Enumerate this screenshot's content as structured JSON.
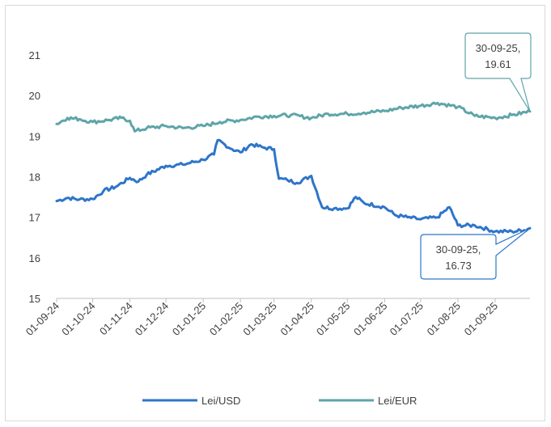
{
  "chart_data": {
    "type": "line",
    "title": "",
    "xlabel": "",
    "ylabel": "",
    "ylim": [
      15,
      21.5
    ],
    "yticks": [
      "15",
      "16",
      "17",
      "18",
      "19",
      "20",
      "21"
    ],
    "xticks": [
      "01-09-24",
      "01-10-24",
      "01-11-24",
      "01-12-24",
      "01-01-25",
      "01-02-25",
      "01-03-25",
      "01-04-25",
      "01-05-25",
      "01-06-25",
      "01-07-25",
      "01-08-25",
      "01-09-25"
    ],
    "x_range": [
      "01-09-24",
      "30-09-25"
    ],
    "grid": false,
    "legend_position": "bottom",
    "series": [
      {
        "name": "Lei/USD",
        "color": "#2e75c9",
        "points": [
          [
            "01-09-24",
            17.4
          ],
          [
            "10-09-24",
            17.48
          ],
          [
            "20-09-24",
            17.44
          ],
          [
            "01-10-24",
            17.45
          ],
          [
            "10-10-24",
            17.65
          ],
          [
            "20-10-24",
            17.75
          ],
          [
            "01-11-24",
            17.97
          ],
          [
            "08-11-24",
            17.88
          ],
          [
            "15-11-24",
            18.05
          ],
          [
            "01-12-24",
            18.27
          ],
          [
            "15-12-24",
            18.3
          ],
          [
            "01-01-25",
            18.42
          ],
          [
            "10-01-25",
            18.55
          ],
          [
            "13-01-25",
            18.9
          ],
          [
            "25-01-25",
            18.68
          ],
          [
            "01-02-25",
            18.6
          ],
          [
            "10-02-25",
            18.8
          ],
          [
            "20-02-25",
            18.72
          ],
          [
            "01-03-25",
            18.68
          ],
          [
            "05-03-25",
            17.95
          ],
          [
            "12-03-25",
            17.92
          ],
          [
            "20-03-25",
            17.85
          ],
          [
            "01-04-25",
            18.02
          ],
          [
            "10-04-25",
            17.25
          ],
          [
            "20-04-25",
            17.22
          ],
          [
            "01-05-25",
            17.22
          ],
          [
            "08-05-25",
            17.5
          ],
          [
            "15-05-25",
            17.35
          ],
          [
            "01-06-25",
            17.25
          ],
          [
            "10-06-25",
            17.05
          ],
          [
            "20-06-25",
            17.0
          ],
          [
            "01-07-25",
            16.95
          ],
          [
            "15-07-25",
            17.0
          ],
          [
            "25-07-25",
            17.25
          ],
          [
            "01-08-25",
            16.8
          ],
          [
            "15-08-25",
            16.8
          ],
          [
            "01-09-25",
            16.65
          ],
          [
            "15-09-25",
            16.65
          ],
          [
            "25-09-25",
            16.68
          ],
          [
            "30-09-25",
            16.73
          ]
        ]
      },
      {
        "name": "Lei/EUR",
        "color": "#5ea5a9",
        "points": [
          [
            "01-09-24",
            19.3
          ],
          [
            "10-09-24",
            19.45
          ],
          [
            "20-09-24",
            19.42
          ],
          [
            "01-10-24",
            19.35
          ],
          [
            "15-10-24",
            19.4
          ],
          [
            "25-10-24",
            19.45
          ],
          [
            "01-11-24",
            19.38
          ],
          [
            "05-11-24",
            19.12
          ],
          [
            "15-11-24",
            19.2
          ],
          [
            "01-12-24",
            19.25
          ],
          [
            "15-12-24",
            19.2
          ],
          [
            "01-01-25",
            19.25
          ],
          [
            "15-01-25",
            19.35
          ],
          [
            "01-02-25",
            19.4
          ],
          [
            "15-02-25",
            19.48
          ],
          [
            "01-03-25",
            19.5
          ],
          [
            "15-03-25",
            19.52
          ],
          [
            "01-04-25",
            19.45
          ],
          [
            "15-04-25",
            19.55
          ],
          [
            "01-05-25",
            19.55
          ],
          [
            "15-05-25",
            19.58
          ],
          [
            "01-06-25",
            19.62
          ],
          [
            "15-06-25",
            19.7
          ],
          [
            "01-07-25",
            19.75
          ],
          [
            "15-07-25",
            19.82
          ],
          [
            "01-08-25",
            19.72
          ],
          [
            "15-08-25",
            19.5
          ],
          [
            "01-09-25",
            19.45
          ],
          [
            "15-09-25",
            19.52
          ],
          [
            "30-09-25",
            19.61
          ]
        ]
      }
    ],
    "annotations": [
      {
        "series": "Lei/EUR",
        "line1": "30-09-25,",
        "line2": "19.61"
      },
      {
        "series": "Lei/USD",
        "line1": "30-09-25,",
        "line2": "16.73"
      }
    ]
  }
}
